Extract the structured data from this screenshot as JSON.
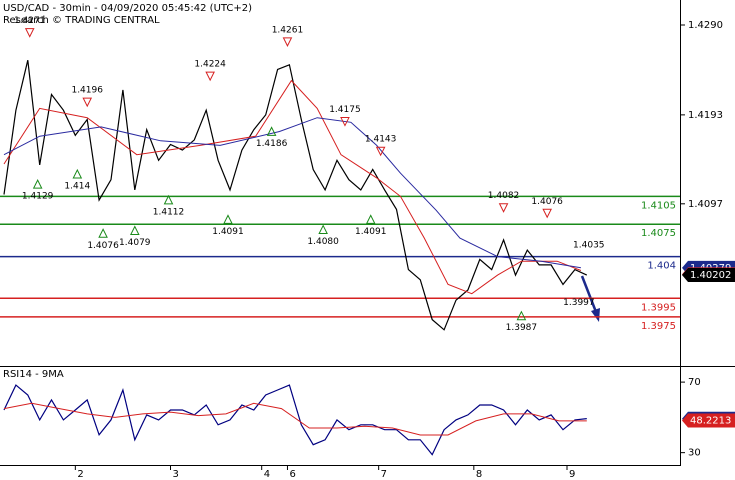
{
  "chart_data": [
    {
      "type": "line",
      "title": "USD/CAD - 30min - 04/09/2020 05:45:42 (UTC+2)",
      "subtitle": "Research © TRADING CENTRAL",
      "x": [
        2,
        8,
        14,
        20,
        26,
        32,
        38,
        44,
        50,
        56,
        62,
        68,
        74,
        80,
        86,
        92,
        98,
        104,
        110,
        116,
        122,
        128,
        134,
        140,
        146,
        152,
        158,
        164,
        170,
        176,
        182,
        188,
        194,
        200,
        206,
        212,
        218,
        224,
        230,
        236,
        242,
        248,
        254,
        260,
        266,
        272,
        278,
        284,
        290,
        296
      ],
      "xlim": [
        0,
        343
      ],
      "ylim": [
        1.3923,
        1.4317
      ],
      "yticks": [
        {
          "value": 1.429,
          "label": "1.4290"
        },
        1.4193,
        1.4097
      ],
      "series": [
        {
          "color": "#000000",
          "values": [
            1.4107,
            1.4198,
            1.4252,
            1.4139,
            1.4215,
            1.4198,
            1.4171,
            1.4188,
            1.4101,
            1.4123,
            1.422,
            1.4112,
            1.4177,
            1.4144,
            1.4161,
            1.4155,
            1.4166,
            1.4198,
            1.4144,
            1.4112,
            1.4155,
            1.4177,
            1.4193,
            1.4242,
            1.4247,
            1.4188,
            1.4134,
            1.4112,
            1.4144,
            1.4123,
            1.4112,
            1.4134,
            1.4112,
            1.4091,
            1.4026,
            1.4015,
            1.3972,
            1.3961,
            1.3993,
            1.4004,
            1.4037,
            1.4026,
            1.4058,
            1.402,
            1.4047,
            1.4031,
            1.4031,
            1.401,
            1.4026,
            1.402
          ]
        },
        {
          "color": "#d62020",
          "x": [
            2,
            20,
            44,
            69,
            101,
            129,
            147,
            160,
            172,
            190,
            202,
            214,
            226,
            238,
            251,
            263,
            281,
            293
          ],
          "values": [
            1.414,
            1.42,
            1.419,
            1.415,
            1.416,
            1.417,
            1.423,
            1.42,
            1.415,
            1.4125,
            1.4105,
            1.406,
            1.401,
            1.4,
            1.402,
            1.4035,
            1.4035,
            1.4025
          ]
        },
        {
          "color": "#2a2aa0",
          "x": [
            2,
            20,
            51,
            81,
            111,
            141,
            160,
            177,
            190,
            202,
            220,
            232,
            251,
            273,
            293
          ],
          "values": [
            1.415,
            1.417,
            1.418,
            1.4165,
            1.416,
            1.4175,
            1.419,
            1.4185,
            1.416,
            1.413,
            1.409,
            1.406,
            1.404,
            1.4035,
            1.4028
          ]
        }
      ],
      "levels": [
        {
          "value": 1.4105,
          "color": "#1a8a1a"
        },
        {
          "value": 1.4075,
          "color": "#1a8a1a"
        },
        {
          "value": 1.404,
          "color": "#1c2a8c"
        },
        {
          "value": 1.3995,
          "color": "#d62020"
        },
        {
          "value": 1.3975,
          "color": "#d62020"
        }
      ],
      "annotations": [
        {
          "x": 15,
          "value": 1.4271,
          "label": "1.4271",
          "marker": "down"
        },
        {
          "x": 44,
          "value": 1.4196,
          "label": "1.4196",
          "marker": "down"
        },
        {
          "x": 106,
          "value": 1.4224,
          "label": "1.4224",
          "marker": "down"
        },
        {
          "x": 145,
          "value": 1.4261,
          "label": "1.4261",
          "marker": "down"
        },
        {
          "x": 174,
          "value": 1.4175,
          "label": "1.4175",
          "marker": "down"
        },
        {
          "x": 192,
          "value": 1.4143,
          "label": "1.4143",
          "marker": "down"
        },
        {
          "x": 254,
          "value": 1.4082,
          "label": "1.4082",
          "marker": "down"
        },
        {
          "x": 276,
          "value": 1.4076,
          "label": "1.4076",
          "marker": "down"
        },
        {
          "x": 297,
          "value": 1.4035,
          "label": "1.4035",
          "marker": "none"
        },
        {
          "x": 19,
          "value": 1.4129,
          "label": "1.4129",
          "marker": "up"
        },
        {
          "x": 39,
          "value": 1.414,
          "label": "1.414",
          "marker": "up"
        },
        {
          "x": 52,
          "value": 1.4076,
          "label": "1.4076",
          "marker": "up"
        },
        {
          "x": 68,
          "value": 1.4079,
          "label": "1.4079",
          "marker": "up"
        },
        {
          "x": 85,
          "value": 1.4112,
          "label": "1.4112",
          "marker": "up"
        },
        {
          "x": 115,
          "value": 1.4091,
          "label": "1.4091",
          "marker": "up"
        },
        {
          "x": 137,
          "value": 1.4186,
          "label": "1.4186",
          "marker": "up"
        },
        {
          "x": 163,
          "value": 1.408,
          "label": "1.4080",
          "marker": "up"
        },
        {
          "x": 187,
          "value": 1.4091,
          "label": "1.4091",
          "marker": "up"
        },
        {
          "x": 263,
          "value": 1.3987,
          "label": "1.3987",
          "marker": "up"
        },
        {
          "x": 292,
          "value": 1.3997,
          "label": "1.3997",
          "marker": "none"
        }
      ],
      "tags": [
        {
          "value": 1.40279,
          "color": "#1c2a8c"
        },
        {
          "value": 1.40208,
          "color": "#d62020"
        },
        {
          "value": 1.40202,
          "color": "#000000"
        }
      ]
    },
    {
      "type": "line",
      "title": "RSI14 - 9MA",
      "x": [
        2,
        8,
        14,
        20,
        26,
        32,
        38,
        44,
        50,
        56,
        62,
        68,
        74,
        80,
        86,
        92,
        98,
        104,
        110,
        116,
        122,
        128,
        134,
        140,
        146,
        152,
        158,
        164,
        170,
        176,
        182,
        188,
        194,
        200,
        206,
        212,
        218,
        224,
        230,
        236,
        242,
        248,
        254,
        260,
        266,
        272,
        278,
        284,
        290,
        296
      ],
      "xlim": [
        0,
        343
      ],
      "xticks": [
        {
          "value": 38,
          "label": "2"
        },
        {
          "value": 86,
          "label": "3"
        },
        {
          "value": 132,
          "label": "4"
        },
        {
          "value": 145,
          "label": "6"
        },
        {
          "value": 191,
          "label": "7"
        },
        {
          "value": 239,
          "label": "8"
        },
        {
          "value": 286,
          "label": "9"
        }
      ],
      "ylim": [
        23,
        78
      ],
      "yticks": [
        70,
        30
      ],
      "series": [
        {
          "color": "#000080",
          "values": [
            54.2,
            68.3,
            62.7,
            48.6,
            59.9,
            48.6,
            54.2,
            59.9,
            40.1,
            48.6,
            65.5,
            37.3,
            51.4,
            48.6,
            54.2,
            54.2,
            51.4,
            57,
            45.8,
            48.6,
            57,
            54.2,
            62.7,
            65.5,
            68.3,
            45.8,
            34.5,
            37.3,
            48.6,
            43,
            45.8,
            45.8,
            43,
            43,
            37.3,
            37.3,
            28.9,
            43,
            48.6,
            51.4,
            57,
            57,
            54.2,
            45.8,
            54.2,
            48.6,
            51.4,
            43,
            48.6,
            49.3
          ]
        },
        {
          "color": "#d62020",
          "x": [
            2,
            16,
            30,
            44,
            58,
            72,
            86,
            100,
            114,
            128,
            142,
            156,
            170,
            184,
            198,
            212,
            226,
            240,
            254,
            268,
            282,
            296
          ],
          "values": [
            55,
            58,
            55,
            52,
            50,
            52,
            53,
            51,
            52,
            58,
            55,
            44,
            44,
            45,
            44,
            40,
            40,
            48,
            52,
            52,
            48,
            48
          ]
        }
      ],
      "tags": [
        {
          "value": 49.2552,
          "color": "#1c2a8c"
        },
        {
          "value": 48.2213,
          "color": "#d62020"
        }
      ]
    }
  ]
}
